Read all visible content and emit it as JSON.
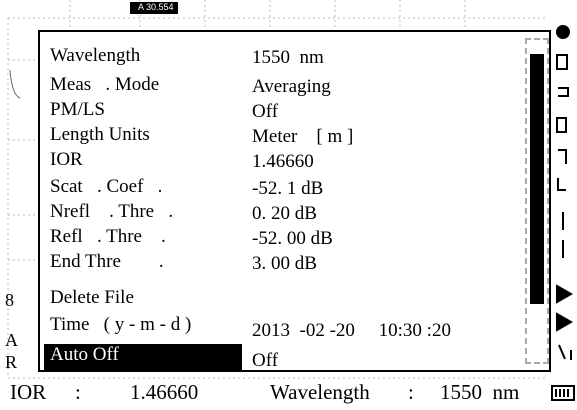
{
  "marker": "A 30.554",
  "side": [
    "8",
    "A",
    "R"
  ],
  "settings": [
    {
      "label": "Wavelength",
      "value": "1550  nm"
    },
    {
      "label": "Meas   . Mode",
      "value": "Averaging"
    },
    {
      "label": "PM/LS",
      "value": "Off"
    },
    {
      "label": "Length Units",
      "value": "Meter    [ m ]"
    },
    {
      "label": "IOR",
      "value": "1.46660"
    },
    {
      "label": "Scat   . Coef   .",
      "value": "-52. 1 dB"
    },
    {
      "label": "Nrefl    . Thre   .",
      "value": "0. 20 dB"
    },
    {
      "label": "Refl   . Thre    .",
      "value": "-52. 00 dB"
    },
    {
      "label": "End Thre        .",
      "value": "3. 00 dB"
    },
    {
      "label": "Delete File"
    },
    {
      "label": "Time   ( y - m - d )",
      "value": "2013  -02 -20     10:30 :20"
    },
    {
      "label": "Auto Off",
      "value": "Off",
      "selected": true
    }
  ],
  "status": {
    "ior_label": "IOR",
    "separator": ":",
    "ior_value": "1.46660",
    "wavelength_label": "Wavelength",
    "wavelength_value": "1550  nm"
  }
}
